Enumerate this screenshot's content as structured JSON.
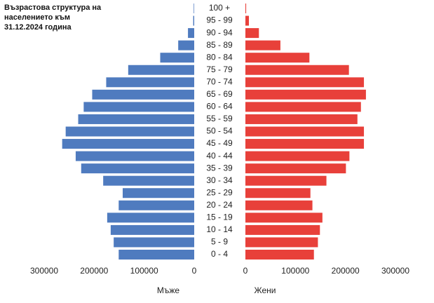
{
  "chart_data": {
    "type": "pyramid",
    "title": "Възрастова структура на населението към 31.12.2024 година",
    "categories": [
      "0 - 4",
      "5 - 9",
      "10 - 14",
      "15 - 19",
      "20 - 24",
      "25 - 29",
      "30 - 34",
      "35 - 39",
      "40 - 44",
      "45 - 49",
      "50 - 54",
      "55 - 59",
      "60 - 64",
      "65 - 69",
      "70 - 74",
      "75 - 79",
      "80 - 84",
      "85 - 89",
      "90 - 94",
      "95 - 99",
      "100 +"
    ],
    "series": [
      {
        "name": "Мъже",
        "color": "#4f7bbf",
        "side": "left",
        "values": [
          151000,
          161000,
          167000,
          174000,
          151000,
          143000,
          182000,
          226000,
          237000,
          264000,
          257000,
          232000,
          221000,
          204000,
          176000,
          132000,
          68000,
          32000,
          12500,
          2000,
          1000
        ]
      },
      {
        "name": "Жени",
        "color": "#e8403a",
        "side": "right",
        "values": [
          137000,
          145000,
          149000,
          154000,
          134000,
          130000,
          162000,
          201000,
          208000,
          237000,
          237000,
          224000,
          231000,
          241000,
          237000,
          207000,
          128000,
          70000,
          27000,
          7000,
          1500
        ]
      }
    ],
    "xlim": [
      0,
      300000
    ],
    "xticks": [
      0,
      100000,
      200000,
      300000
    ]
  }
}
